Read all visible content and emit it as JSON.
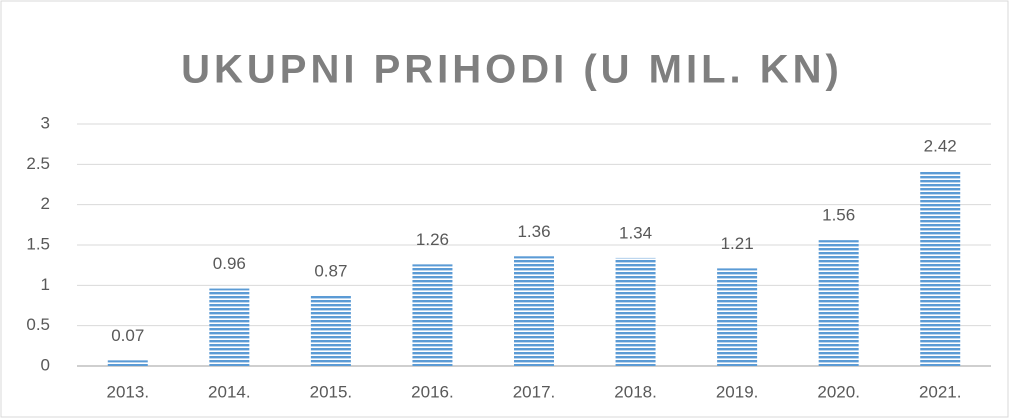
{
  "chart_data": {
    "type": "bar",
    "title": "UKUPNI PRIHODI (U MIL. KN)",
    "categories": [
      "2013.",
      "2014.",
      "2015.",
      "2016.",
      "2017.",
      "2018.",
      "2019.",
      "2020.",
      "2021."
    ],
    "values": [
      0.07,
      0.96,
      0.87,
      1.26,
      1.36,
      1.34,
      1.21,
      1.56,
      2.42
    ],
    "color": "#5b9bd5",
    "ylim": [
      0,
      3
    ],
    "yticks": [
      0,
      0.5,
      1,
      1.5,
      2,
      2.5,
      3
    ],
    "grid": true
  }
}
